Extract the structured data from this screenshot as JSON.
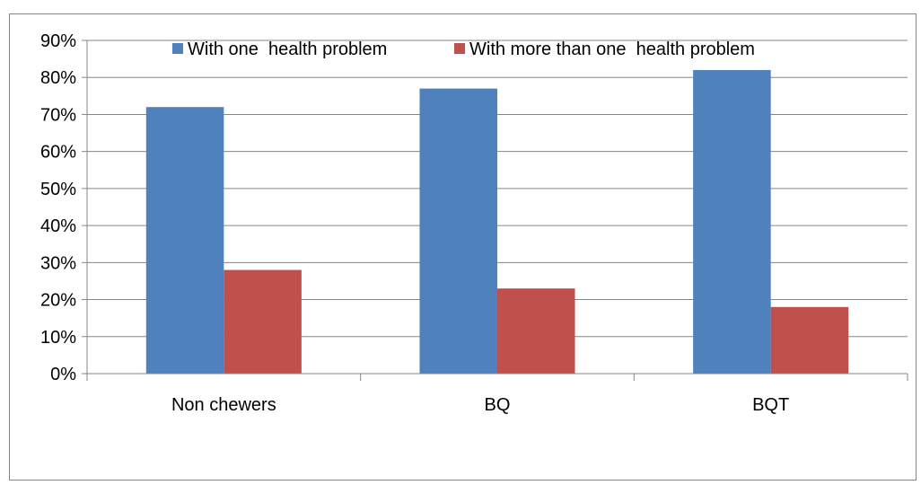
{
  "chart_data": {
    "type": "bar",
    "categories": [
      "Non chewers",
      "BQ",
      "BQT"
    ],
    "series": [
      {
        "name": "With one  health problem",
        "values": [
          72,
          77,
          82
        ],
        "color": "#4F81BD"
      },
      {
        "name": "With more than one  health problem",
        "values": [
          28,
          23,
          18
        ],
        "color": "#C0504D"
      }
    ],
    "y_ticks": [
      "0%",
      "10%",
      "20%",
      "30%",
      "40%",
      "50%",
      "60%",
      "70%",
      "80%",
      "90%"
    ],
    "ylim": [
      0,
      90
    ],
    "y_unit": "%",
    "grid": true,
    "legend_position": "top",
    "title": "",
    "xlabel": "",
    "ylabel": ""
  }
}
